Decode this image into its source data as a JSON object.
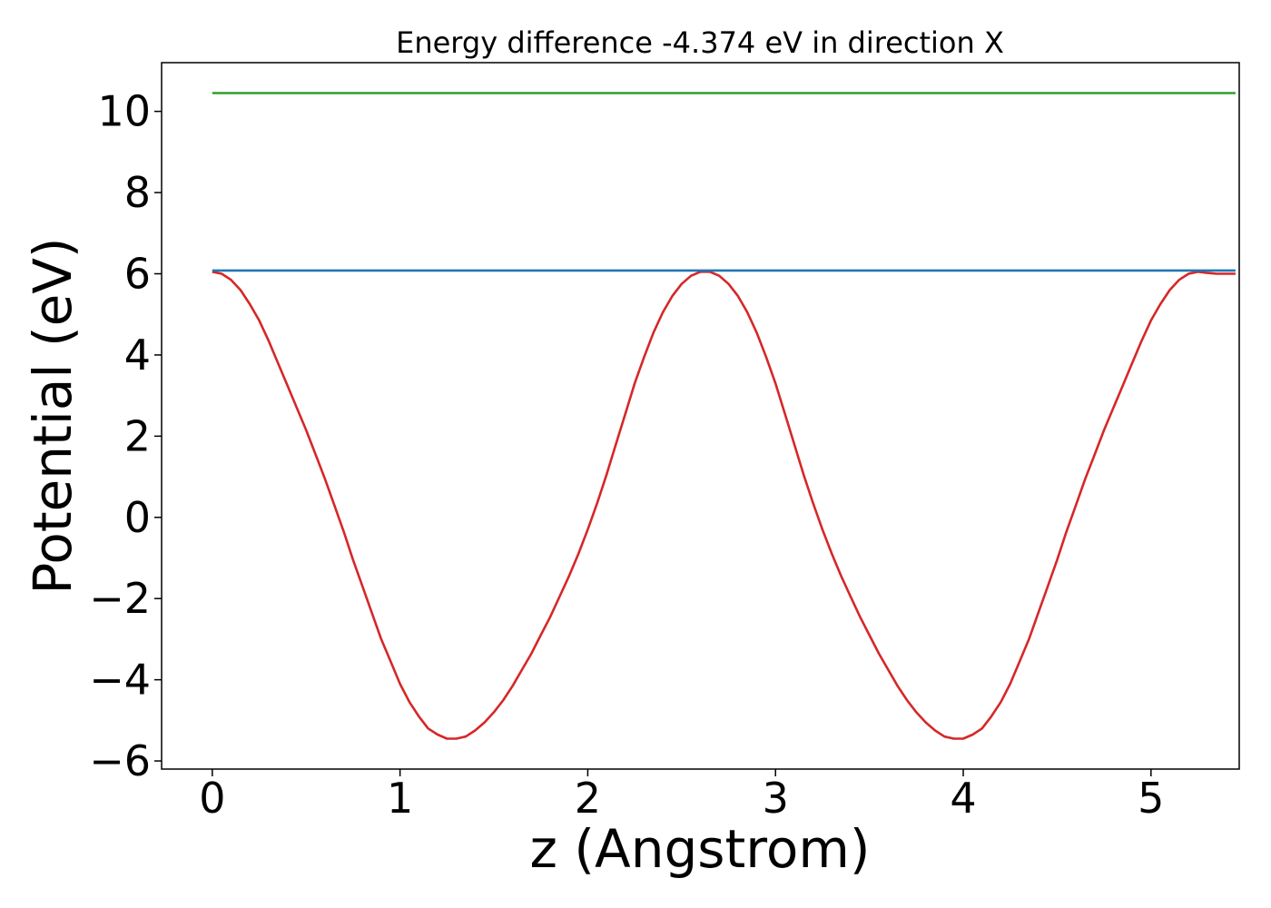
{
  "chart_data": {
    "type": "line",
    "title": "Energy difference -4.374 eV in direction X",
    "xlabel": "z (Angstrom)",
    "ylabel": "Potential (eV)",
    "xlim": [
      -0.27,
      5.47
    ],
    "ylim": [
      -6.2,
      11.2
    ],
    "xticks": [
      0,
      1,
      2,
      3,
      4,
      5
    ],
    "yticks": [
      -6,
      -4,
      -2,
      0,
      2,
      4,
      6,
      8,
      10
    ],
    "xtick_labels": [
      "0",
      "1",
      "2",
      "3",
      "4",
      "5"
    ],
    "ytick_labels": [
      "−6",
      "−4",
      "−2",
      "0",
      "2",
      "4",
      "6",
      "8",
      "10"
    ],
    "grid": false,
    "series": [
      {
        "color": "#d62728",
        "x": [
          0.0,
          0.05,
          0.1,
          0.15,
          0.2,
          0.25,
          0.3,
          0.35,
          0.4,
          0.45,
          0.5,
          0.55,
          0.6,
          0.65,
          0.7,
          0.75,
          0.8,
          0.85,
          0.9,
          0.95,
          1.0,
          1.05,
          1.1,
          1.15,
          1.2,
          1.25,
          1.3,
          1.35,
          1.4,
          1.45,
          1.5,
          1.55,
          1.6,
          1.65,
          1.7,
          1.75,
          1.8,
          1.85,
          1.9,
          1.95,
          2.0,
          2.05,
          2.1,
          2.15,
          2.2,
          2.25,
          2.3,
          2.35,
          2.4,
          2.45,
          2.5,
          2.55,
          2.6,
          2.65,
          2.7,
          2.75,
          2.8,
          2.85,
          2.9,
          2.95,
          3.0,
          3.05,
          3.1,
          3.15,
          3.2,
          3.25,
          3.3,
          3.35,
          3.4,
          3.45,
          3.5,
          3.55,
          3.6,
          3.65,
          3.7,
          3.75,
          3.8,
          3.85,
          3.9,
          3.95,
          4.0,
          4.05,
          4.1,
          4.15,
          4.2,
          4.25,
          4.3,
          4.35,
          4.4,
          4.45,
          4.5,
          4.55,
          4.6,
          4.65,
          4.7,
          4.75,
          4.8,
          4.85,
          4.9,
          4.95,
          5.0,
          5.05,
          5.1,
          5.15,
          5.2,
          5.25,
          5.3,
          5.35,
          5.4,
          5.45
        ],
        "y": [
          6.05,
          6.0,
          5.85,
          5.6,
          5.25,
          4.85,
          4.35,
          3.8,
          3.25,
          2.7,
          2.15,
          1.55,
          0.95,
          0.3,
          -0.35,
          -1.05,
          -1.7,
          -2.35,
          -3.0,
          -3.55,
          -4.1,
          -4.55,
          -4.9,
          -5.2,
          -5.35,
          -5.45,
          -5.45,
          -5.4,
          -5.25,
          -5.05,
          -4.8,
          -4.5,
          -4.15,
          -3.75,
          -3.35,
          -2.9,
          -2.45,
          -1.95,
          -1.45,
          -0.9,
          -0.3,
          0.35,
          1.05,
          1.8,
          2.55,
          3.3,
          3.95,
          4.55,
          5.05,
          5.45,
          5.75,
          5.95,
          6.05,
          6.05,
          5.95,
          5.75,
          5.45,
          5.05,
          4.55,
          3.95,
          3.3,
          2.55,
          1.8,
          1.05,
          0.35,
          -0.3,
          -0.9,
          -1.45,
          -1.95,
          -2.45,
          -2.9,
          -3.35,
          -3.75,
          -4.15,
          -4.5,
          -4.8,
          -5.05,
          -5.25,
          -5.4,
          -5.45,
          -5.45,
          -5.35,
          -5.2,
          -4.9,
          -4.55,
          -4.1,
          -3.55,
          -3.0,
          -2.35,
          -1.7,
          -1.05,
          -0.35,
          0.3,
          0.95,
          1.55,
          2.15,
          2.7,
          3.25,
          3.8,
          4.35,
          4.85,
          5.25,
          5.6,
          5.85,
          6.0,
          6.05,
          6.02,
          6.0,
          6.0,
          6.0
        ]
      },
      {
        "color": "#1f77b4",
        "x": [
          0.0,
          5.45
        ],
        "y": [
          6.08,
          6.08
        ]
      },
      {
        "color": "#2ca02c",
        "x": [
          0.0,
          5.45
        ],
        "y": [
          10.45,
          10.45
        ]
      }
    ]
  }
}
